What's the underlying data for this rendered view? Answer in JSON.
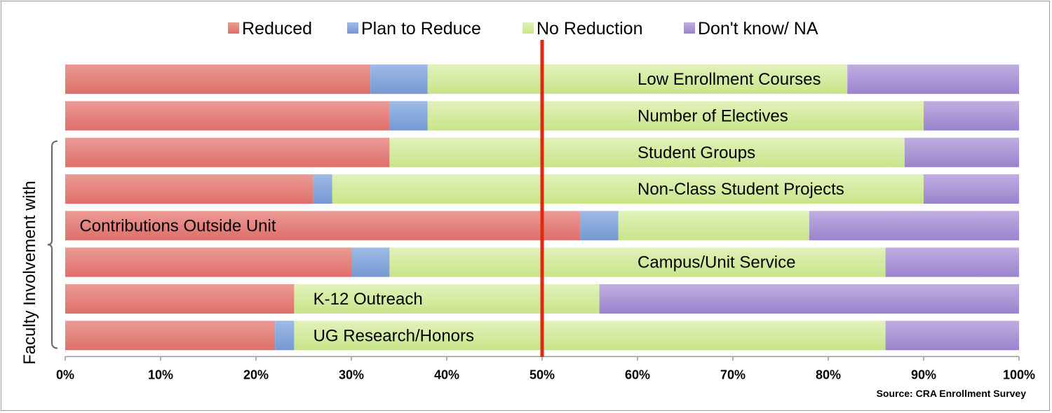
{
  "chart_data": {
    "type": "bar",
    "orientation": "horizontal",
    "stacked": true,
    "title": "",
    "xlabel": "",
    "ylabel": "Faculty Involvement with",
    "xlim": [
      0,
      100
    ],
    "x_ticks": [
      "0%",
      "10%",
      "20%",
      "30%",
      "40%",
      "50%",
      "60%",
      "70%",
      "80%",
      "90%",
      "100%"
    ],
    "grid": false,
    "legend_position": "top",
    "reference_line": {
      "value": 50,
      "color": "#e02a10"
    },
    "source": "Source: CRA Enrollment Survey",
    "categories": [
      "Low Enrollment Courses",
      "Number of Electives",
      "Student Groups",
      "Non-Class Student Projects",
      "Contributions Outside Unit",
      "Campus/Unit Service",
      "K-12 Outreach",
      "UG Research/Honors"
    ],
    "series": [
      {
        "name": "Reduced",
        "color": "#e5807a",
        "values": [
          32,
          34,
          34,
          26,
          54,
          30,
          24,
          22
        ]
      },
      {
        "name": "Plan to Reduce",
        "color": "#87a9dd",
        "values": [
          6,
          4,
          0,
          2,
          4,
          4,
          0,
          2
        ]
      },
      {
        "name": "No Reduction",
        "color": "#d4eba0",
        "values": [
          44,
          52,
          54,
          62,
          20,
          52,
          32,
          62
        ]
      },
      {
        "name": "Don't know/ NA",
        "color": "#ae9ad8",
        "values": [
          18,
          10,
          12,
          10,
          22,
          14,
          44,
          14
        ]
      }
    ],
    "bar_label_position": [
      60,
      60,
      60,
      60,
      1.5,
      60,
      26,
      26
    ],
    "bracket_rows": [
      2,
      7
    ]
  }
}
